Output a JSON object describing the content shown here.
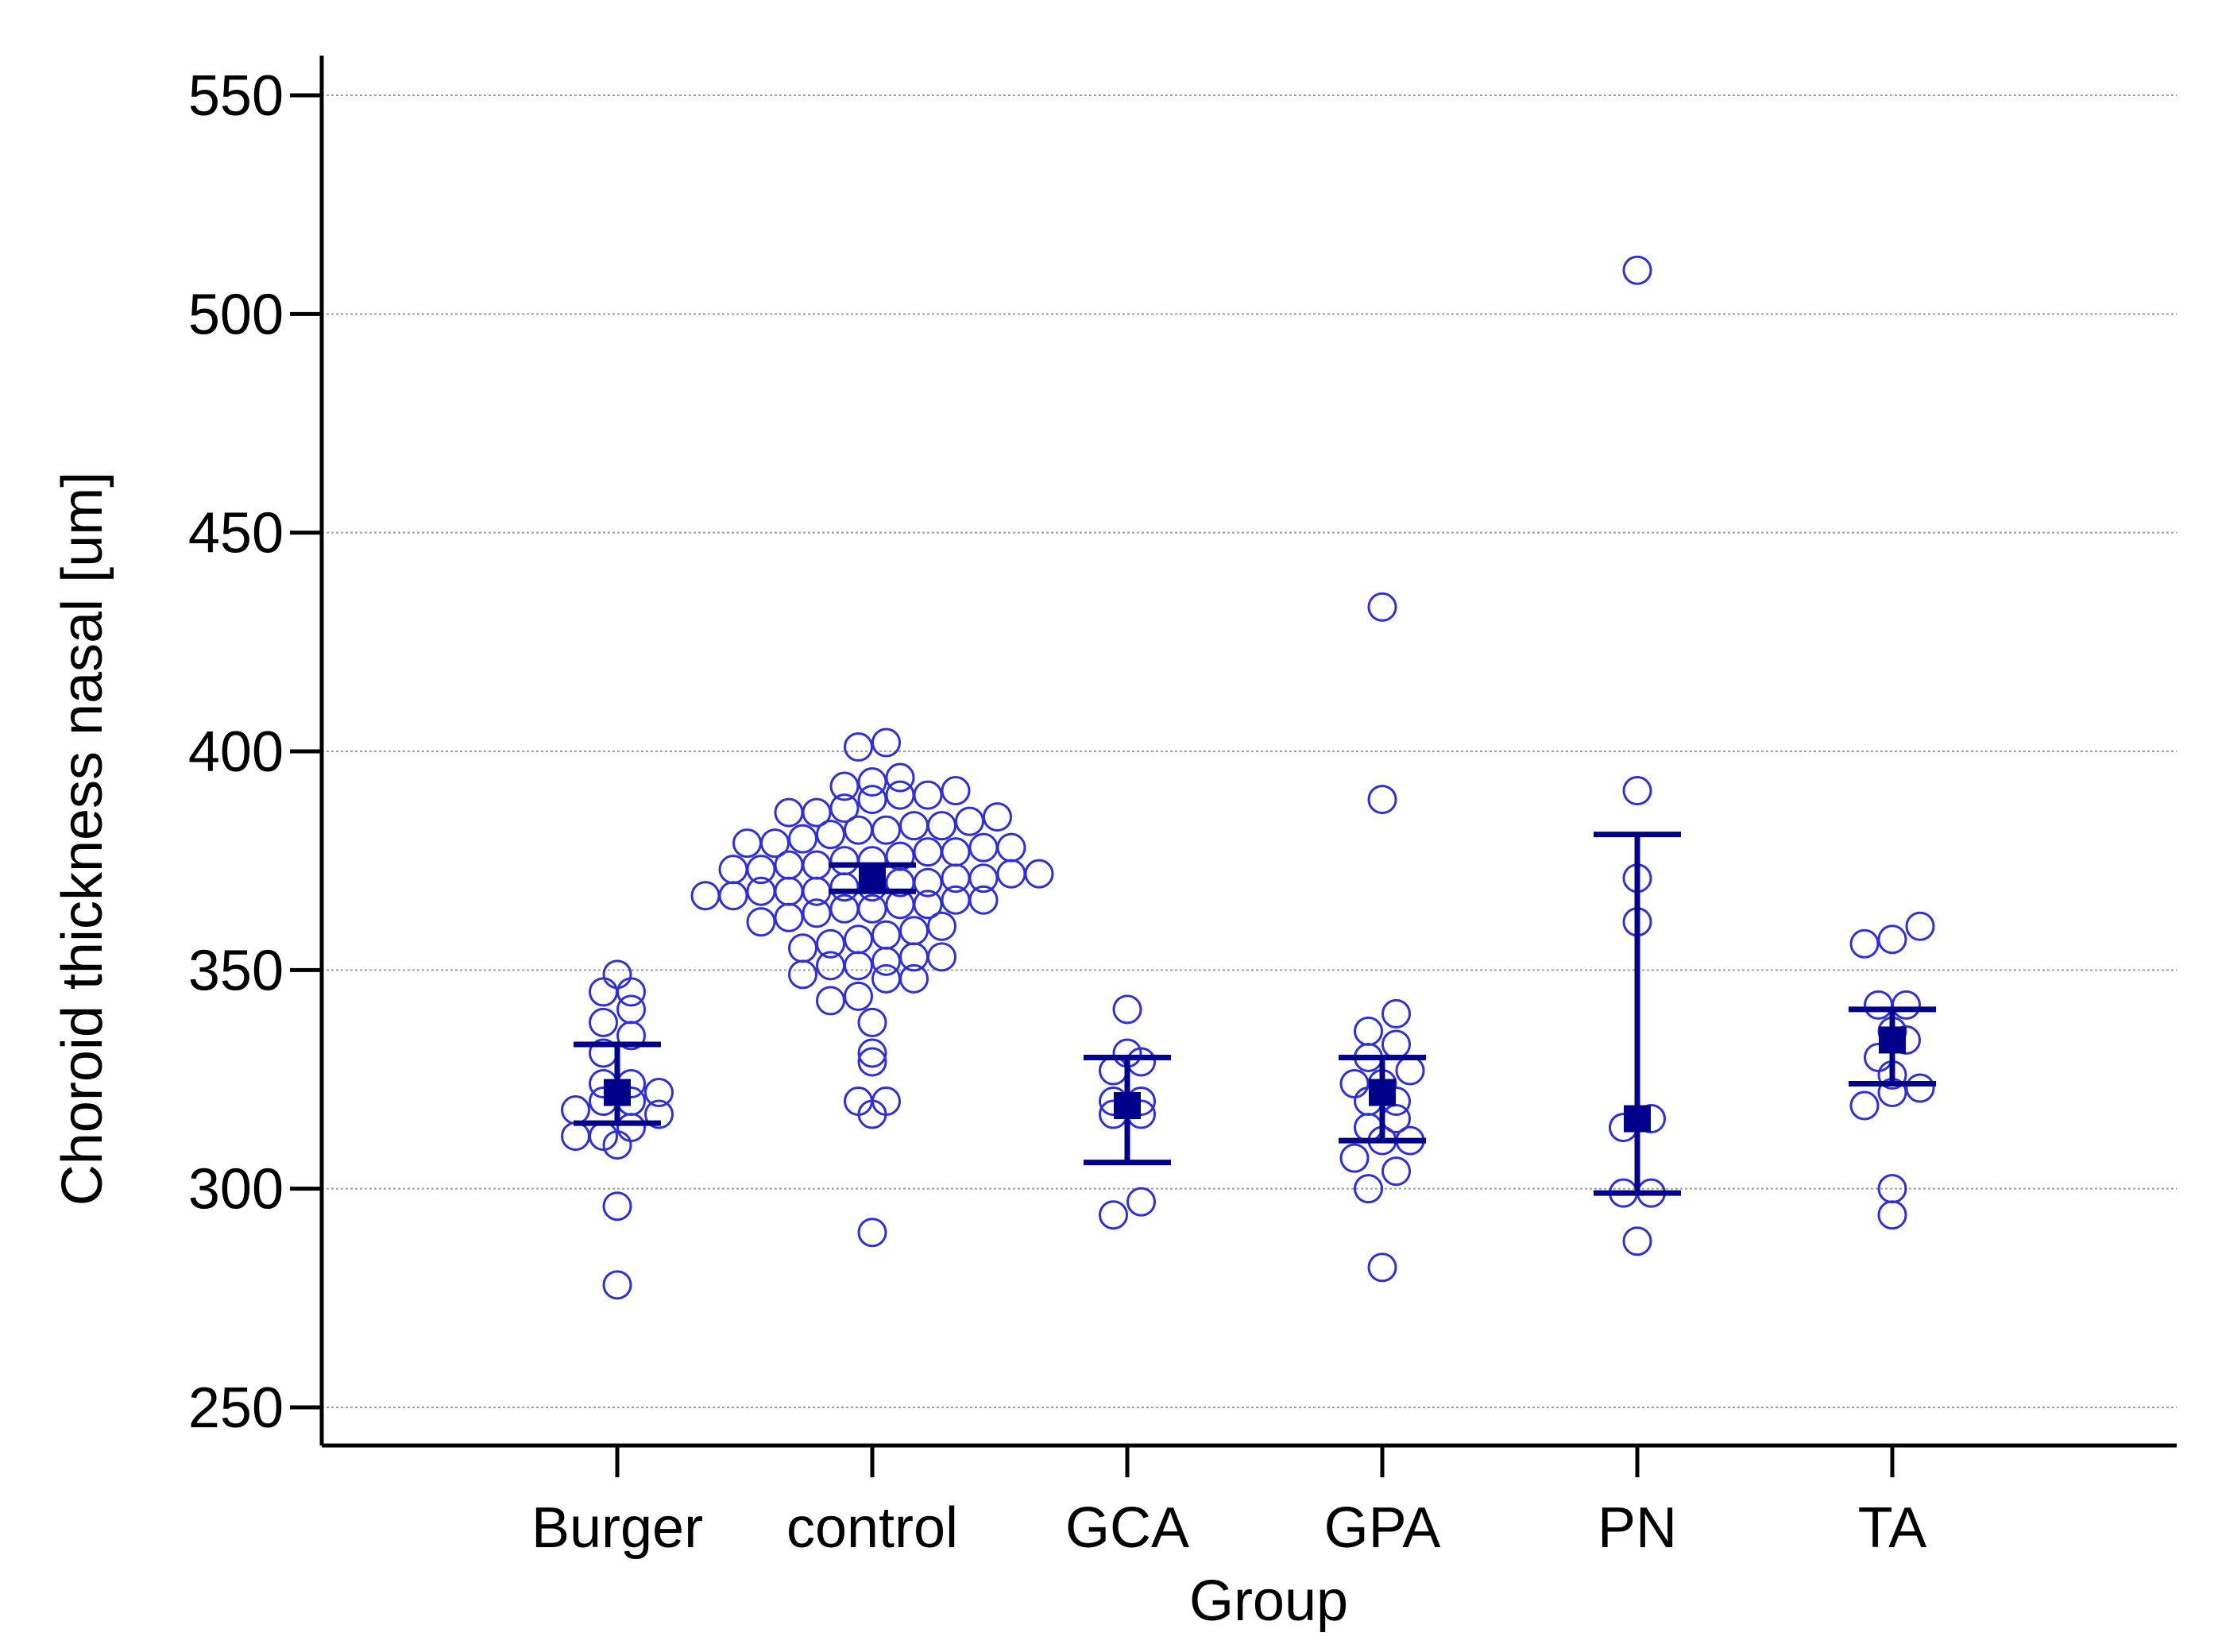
{
  "chart_data": {
    "type": "scatter",
    "title": "",
    "xlabel": "Group",
    "ylabel": "Choroid thickness nasal [um]",
    "ylim": [
      240,
      560
    ],
    "yticks": [
      250,
      300,
      350,
      400,
      450,
      500,
      550
    ],
    "grid": true,
    "colors": {
      "points": "#2f2fd8",
      "summary": "#00008b",
      "grid": "#a0a0a0",
      "axis": "#000000"
    },
    "categories": [
      "Burger",
      "control",
      "GCA",
      "GPA",
      "PN",
      "TA"
    ],
    "groups": [
      {
        "name": "Burger",
        "mean": 322,
        "ci_low": 315,
        "ci_high": 333,
        "points": [
          278,
          296,
          310,
          312,
          312,
          314,
          317,
          318,
          320,
          320,
          322,
          324,
          324,
          331,
          335,
          338,
          341,
          345,
          345,
          349
        ]
      },
      {
        "name": "control",
        "mean": 371,
        "ci_low": 368,
        "ci_high": 374,
        "points": [
          290,
          317,
          320,
          320,
          329,
          331,
          338,
          343,
          344,
          348,
          348,
          349,
          351,
          351,
          352,
          353,
          353,
          355,
          356,
          357,
          358,
          359,
          360,
          361,
          362,
          363,
          364,
          364,
          365,
          365,
          366,
          366,
          367,
          367,
          368,
          368,
          368,
          369,
          369,
          370,
          370,
          371,
          371,
          372,
          372,
          373,
          373,
          374,
          374,
          375,
          375,
          376,
          377,
          377,
          378,
          378,
          379,
          379,
          380,
          381,
          382,
          382,
          383,
          383,
          384,
          385,
          386,
          386,
          387,
          389,
          390,
          390,
          391,
          392,
          393,
          394,
          401,
          402
        ]
      },
      {
        "name": "GCA",
        "mean": 319,
        "ci_low": 306,
        "ci_high": 330,
        "points": [
          294,
          297,
          317,
          317,
          320,
          320,
          327,
          329,
          331,
          341
        ]
      },
      {
        "name": "GPA",
        "mean": 322,
        "ci_low": 311,
        "ci_high": 330,
        "points": [
          282,
          300,
          304,
          307,
          311,
          311,
          314,
          316,
          320,
          320,
          324,
          324,
          327,
          330,
          333,
          336,
          340,
          389,
          433
        ]
      },
      {
        "name": "PN",
        "mean": 316,
        "ci_low": 299,
        "ci_high": 381,
        "points": [
          288,
          299,
          299,
          314,
          316,
          361,
          371,
          391,
          510
        ]
      },
      {
        "name": "TA",
        "mean": 334,
        "ci_low": 324,
        "ci_high": 341,
        "points": [
          294,
          300,
          319,
          322,
          323,
          326,
          330,
          334,
          336,
          342,
          342,
          356,
          357,
          360
        ]
      }
    ]
  }
}
